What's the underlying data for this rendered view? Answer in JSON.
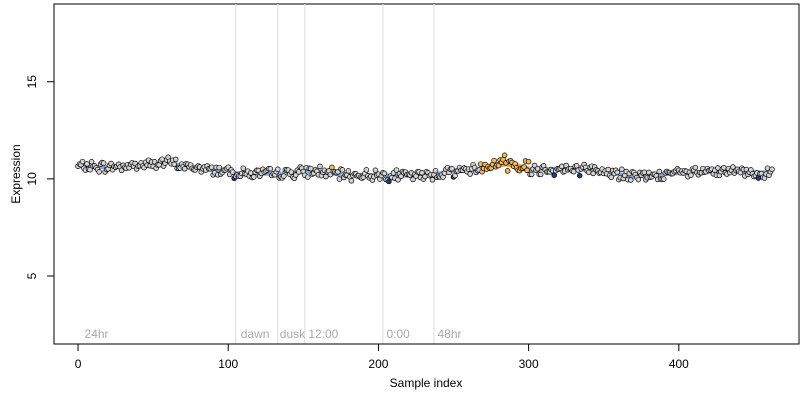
{
  "chart_data": {
    "type": "scatter",
    "title": "",
    "xlabel": "Sample index",
    "ylabel": "Expression",
    "xlim": [
      -16,
      480
    ],
    "ylim": [
      1.5,
      19
    ],
    "x_ticks": [
      0,
      100,
      200,
      300,
      400
    ],
    "y_ticks": [
      5,
      10,
      15
    ],
    "grid": false,
    "group_boundaries": [
      105,
      133,
      151,
      203,
      237
    ],
    "group_labels": [
      {
        "x": 3,
        "label": "24hr"
      },
      {
        "x": 107,
        "label": "dawn"
      },
      {
        "x": 133,
        "label": "dusk"
      },
      {
        "x": 152,
        "label": "12:00"
      },
      {
        "x": 204,
        "label": "0:00"
      },
      {
        "x": 238,
        "label": "48hr"
      }
    ],
    "colors": {
      "default_point": "#d3d3d3",
      "high_point": "#f4b860",
      "low_point": "#1f3c88",
      "smooth_line": "#6f8fcf",
      "high_segment": "#f0a030",
      "separator": "#dddddd",
      "group_label": "#a9a9a9"
    },
    "series": [
      {
        "n": 463,
        "anchors_x": [
          0,
          20,
          40,
          60,
          70,
          90,
          100,
          105,
          130,
          160,
          175,
          200,
          230,
          250,
          265,
          285,
          300,
          330,
          350,
          370,
          400,
          440,
          463
        ],
        "anchors_y": [
          10.65,
          10.6,
          10.7,
          10.85,
          10.65,
          10.45,
          10.45,
          10.3,
          10.25,
          10.4,
          10.2,
          10.2,
          10.15,
          10.4,
          10.5,
          10.8,
          10.5,
          10.5,
          10.4,
          10.1,
          10.3,
          10.4,
          10.3
        ],
        "seed": 7
      }
    ],
    "highlighted_ranges": [
      [
        268,
        300
      ]
    ]
  }
}
